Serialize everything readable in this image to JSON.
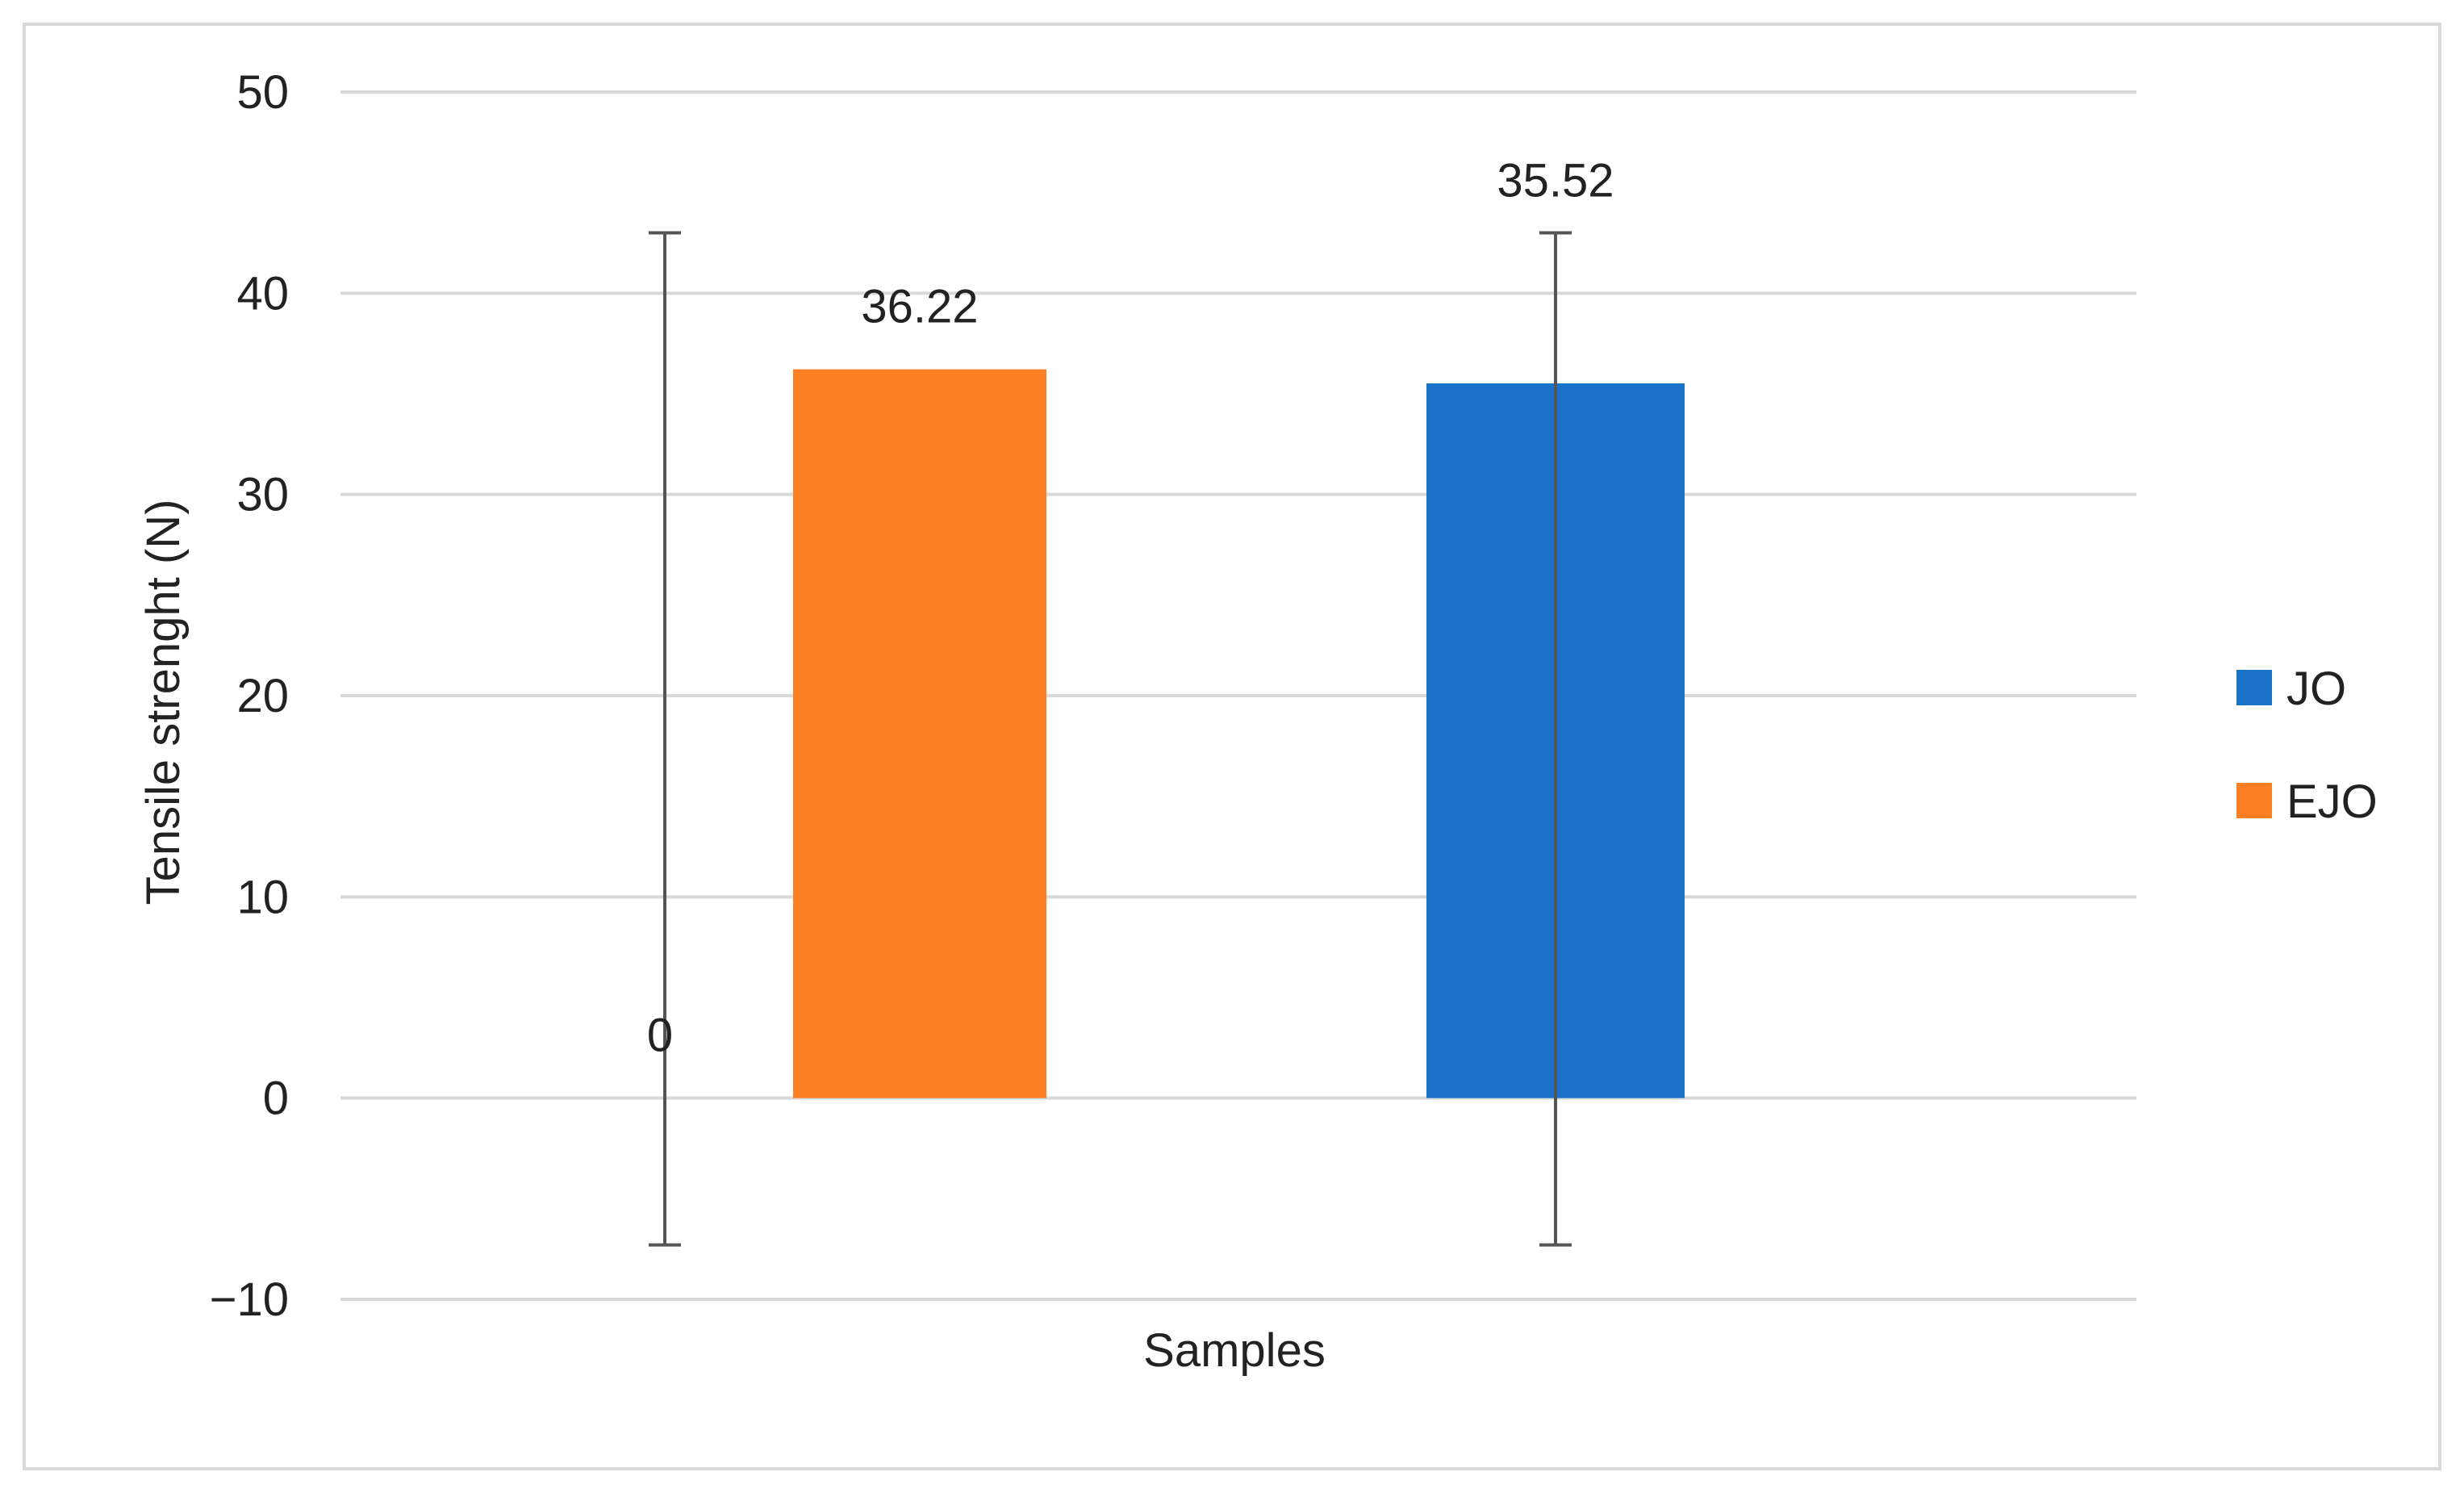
{
  "chart_data": {
    "type": "bar",
    "title": "",
    "xlabel": "Samples",
    "ylabel": "Tensile strenght (N)",
    "ylim": [
      -10,
      50
    ],
    "yticks": [
      -10,
      0,
      10,
      20,
      30,
      40,
      50
    ],
    "ytick_labels": [
      "−10",
      "0",
      "10",
      "20",
      "30",
      "40",
      "50"
    ],
    "grid": true,
    "legend_position": "right",
    "series": [
      {
        "name": "JO",
        "color": "#1a73c8",
        "value": 0,
        "data_label": "0",
        "error_low": -7.3,
        "error_high": 43
      },
      {
        "name": "EJO",
        "color": "#fd7f23",
        "value": 36.22,
        "data_label": "36.22"
      },
      {
        "name": "JO",
        "color": "#1a73c8",
        "value": 35.52,
        "data_label": "35.52",
        "error_low": -7.3,
        "error_high": 43
      }
    ],
    "legend": [
      {
        "name": "JO",
        "color": "#1a73c8"
      },
      {
        "name": "EJO",
        "color": "#fd7f23"
      }
    ]
  }
}
